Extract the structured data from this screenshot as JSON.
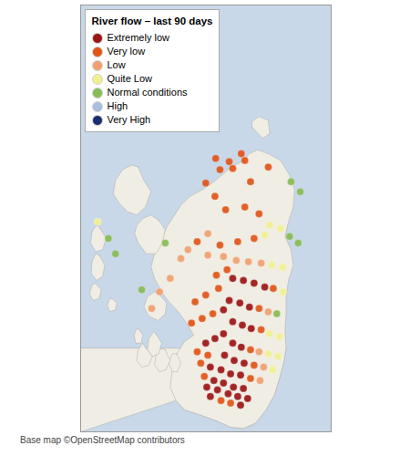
{
  "chart_data": {
    "type": "scatter",
    "title": "River flow – last 90 days",
    "caption": "Base map ©OpenStreetMap contributors",
    "xlim": [
      -7.8,
      -0.75
    ],
    "ylim": [
      54.55,
      60.95
    ],
    "tick_labels": false,
    "legend": "upper left",
    "background": {
      "color": "#c8d8e8"
    },
    "land": {
      "color": "#f0ede4",
      "edge_color": "#aaaaaa",
      "polygons": [
        [
          [
            -2.02,
            55.8
          ],
          [
            -2.08,
            55.6
          ],
          [
            -2.18,
            55.4
          ],
          [
            -2.35,
            55.1
          ],
          [
            -2.58,
            54.88
          ],
          [
            -2.88,
            54.68
          ],
          [
            -3.22,
            54.6
          ],
          [
            -3.58,
            54.62
          ],
          [
            -4.0,
            54.72
          ],
          [
            -4.42,
            54.8
          ],
          [
            -4.88,
            54.88
          ],
          [
            -5.12,
            55.02
          ],
          [
            -7.8,
            54.55
          ],
          [
            -7.8,
            55.8
          ]
        ],
        [
          [
            -2.02,
            55.8
          ],
          [
            -2.08,
            55.6
          ],
          [
            -2.18,
            55.4
          ],
          [
            -2.35,
            55.1
          ],
          [
            -2.58,
            54.88
          ],
          [
            -2.88,
            54.68
          ],
          [
            -3.22,
            54.6
          ],
          [
            -3.58,
            54.62
          ],
          [
            -4.0,
            54.72
          ],
          [
            -4.42,
            54.8
          ],
          [
            -4.88,
            54.88
          ],
          [
            -5.12,
            55.02
          ],
          [
            -5.28,
            55.22
          ],
          [
            -5.22,
            55.48
          ],
          [
            -5.1,
            55.72
          ],
          [
            -4.88,
            55.9
          ],
          [
            -4.62,
            56.0
          ],
          [
            -4.82,
            56.18
          ],
          [
            -5.05,
            56.35
          ],
          [
            -5.32,
            56.5
          ],
          [
            -5.52,
            56.65
          ],
          [
            -5.72,
            56.85
          ],
          [
            -5.82,
            57.02
          ],
          [
            -5.72,
            57.22
          ],
          [
            -5.52,
            57.42
          ],
          [
            -5.38,
            57.62
          ],
          [
            -5.18,
            57.78
          ],
          [
            -4.98,
            57.95
          ],
          [
            -4.72,
            58.08
          ],
          [
            -4.38,
            58.18
          ],
          [
            -4.05,
            58.3
          ],
          [
            -3.65,
            58.48
          ],
          [
            -3.22,
            58.62
          ],
          [
            -3.05,
            58.72
          ],
          [
            -2.82,
            58.78
          ],
          [
            -2.52,
            58.72
          ],
          [
            -2.18,
            58.62
          ],
          [
            -1.92,
            58.4
          ],
          [
            -1.78,
            58.18
          ],
          [
            -1.82,
            57.92
          ],
          [
            -1.95,
            57.7
          ],
          [
            -2.05,
            57.48
          ],
          [
            -1.88,
            57.28
          ],
          [
            -1.82,
            57.05
          ],
          [
            -1.95,
            56.82
          ],
          [
            -2.02,
            56.58
          ],
          [
            -2.02,
            56.32
          ],
          [
            -2.05,
            56.08
          ],
          [
            -2.02,
            55.8
          ]
        ],
        [
          [
            -5.6,
            57.72
          ],
          [
            -5.42,
            57.58
          ],
          [
            -5.5,
            57.38
          ],
          [
            -5.68,
            57.22
          ],
          [
            -5.95,
            57.22
          ],
          [
            -6.18,
            57.38
          ],
          [
            -6.28,
            57.52
          ],
          [
            -6.22,
            57.65
          ],
          [
            -6.05,
            57.75
          ],
          [
            -5.82,
            57.8
          ],
          [
            -5.6,
            57.72
          ]
        ],
        [
          [
            -5.6,
            56.62
          ],
          [
            -5.38,
            56.48
          ],
          [
            -5.42,
            56.32
          ],
          [
            -5.62,
            56.22
          ],
          [
            -5.88,
            56.28
          ],
          [
            -6.02,
            56.42
          ],
          [
            -5.92,
            56.58
          ],
          [
            -5.72,
            56.65
          ],
          [
            -5.6,
            56.62
          ]
        ],
        [
          [
            -5.98,
            55.82
          ],
          [
            -5.78,
            55.68
          ],
          [
            -5.88,
            55.55
          ],
          [
            -6.08,
            55.52
          ],
          [
            -6.22,
            55.62
          ],
          [
            -6.18,
            55.78
          ],
          [
            -6.05,
            55.88
          ],
          [
            -5.98,
            55.82
          ]
        ],
        [
          [
            -6.18,
            58.52
          ],
          [
            -6.02,
            58.32
          ],
          [
            -5.82,
            58.15
          ],
          [
            -5.98,
            57.92
          ],
          [
            -6.22,
            57.8
          ],
          [
            -6.48,
            57.85
          ],
          [
            -6.72,
            57.98
          ],
          [
            -6.88,
            58.12
          ],
          [
            -6.82,
            58.32
          ],
          [
            -6.62,
            58.48
          ],
          [
            -6.35,
            58.55
          ],
          [
            -6.18,
            58.52
          ]
        ],
        [
          [
            -2.98,
            59.12
          ],
          [
            -2.68,
            58.95
          ],
          [
            -2.48,
            59.02
          ],
          [
            -2.52,
            59.22
          ],
          [
            -2.78,
            59.28
          ],
          [
            -2.98,
            59.2
          ],
          [
            -2.98,
            59.12
          ]
        ],
        [
          [
            -5.1,
            55.72
          ],
          [
            -4.98,
            55.58
          ],
          [
            -5.08,
            55.45
          ],
          [
            -5.22,
            55.45
          ],
          [
            -5.32,
            55.58
          ],
          [
            -5.22,
            55.72
          ],
          [
            -5.1,
            55.72
          ]
        ],
        [
          [
            -5.42,
            55.78
          ],
          [
            -5.28,
            55.62
          ],
          [
            -5.4,
            55.48
          ],
          [
            -5.58,
            55.45
          ],
          [
            -5.72,
            55.55
          ],
          [
            -5.68,
            55.7
          ],
          [
            -5.55,
            55.8
          ],
          [
            -5.42,
            55.78
          ]
        ],
        [
          [
            -5.68,
            56.02
          ],
          [
            -5.52,
            55.88
          ],
          [
            -5.6,
            55.72
          ],
          [
            -5.78,
            55.68
          ],
          [
            -5.92,
            55.78
          ],
          [
            -5.88,
            55.95
          ],
          [
            -5.75,
            56.05
          ],
          [
            -5.68,
            56.02
          ]
        ],
        [
          [
            -6.18,
            56.1
          ],
          [
            -6.05,
            56.0
          ],
          [
            -6.1,
            55.88
          ],
          [
            -6.25,
            55.88
          ],
          [
            -6.3,
            56.0
          ],
          [
            -6.22,
            56.1
          ],
          [
            -6.18,
            56.1
          ]
        ],
        [
          [
            -7.25,
            57.6
          ],
          [
            -7.08,
            57.45
          ],
          [
            -7.18,
            57.28
          ],
          [
            -7.38,
            57.25
          ],
          [
            -7.52,
            57.38
          ],
          [
            -7.48,
            57.55
          ],
          [
            -7.35,
            57.65
          ],
          [
            -7.25,
            57.6
          ]
        ],
        [
          [
            -7.28,
            57.2
          ],
          [
            -7.12,
            57.05
          ],
          [
            -7.18,
            56.88
          ],
          [
            -7.35,
            56.82
          ],
          [
            -7.5,
            56.92
          ],
          [
            -7.48,
            57.1
          ],
          [
            -7.38,
            57.22
          ],
          [
            -7.28,
            57.2
          ]
        ],
        [
          [
            -7.38,
            56.78
          ],
          [
            -7.22,
            56.68
          ],
          [
            -7.28,
            56.55
          ],
          [
            -7.45,
            56.52
          ],
          [
            -7.55,
            56.62
          ],
          [
            -7.48,
            56.75
          ],
          [
            -7.38,
            56.78
          ]
        ],
        [
          [
            -6.92,
            56.55
          ],
          [
            -6.78,
            56.48
          ],
          [
            -6.82,
            56.38
          ],
          [
            -6.98,
            56.35
          ],
          [
            -7.05,
            56.45
          ],
          [
            -6.98,
            56.55
          ],
          [
            -6.92,
            56.55
          ]
        ]
      ]
    },
    "series": [
      {
        "name": "Extremely low",
        "color": "#9b1515",
        "x": [
          -3.52,
          -3.22,
          -2.92,
          -2.62,
          -3.62,
          -3.32,
          -3.05,
          -3.78,
          -3.52,
          -3.25,
          -3.0,
          -3.78,
          -4.02,
          -4.28,
          -3.52,
          -3.28,
          -3.75,
          -3.48,
          -3.2,
          -4.15,
          -3.85,
          -3.58,
          -3.3,
          -4.05,
          -3.78,
          -3.5,
          -3.22,
          -4.25,
          -3.95,
          -3.65,
          -3.38,
          -3.1,
          -4.15,
          -3.3
        ],
        "y": [
          56.85,
          56.82,
          56.78,
          56.72,
          56.52,
          56.48,
          56.42,
          56.38,
          56.2,
          56.15,
          56.1,
          56.02,
          55.95,
          55.88,
          55.88,
          55.82,
          55.7,
          55.62,
          55.58,
          55.52,
          55.48,
          55.42,
          55.4,
          55.32,
          55.28,
          55.22,
          55.2,
          55.22,
          55.18,
          55.12,
          55.08,
          55.05,
          55.08,
          54.95
        ]
      },
      {
        "name": "Very low",
        "color": "#e05518",
        "x": [
          -3.18,
          -3.52,
          -3.88,
          -4.28,
          -2.52,
          -3.02,
          -4.02,
          -3.72,
          -3.18,
          -2.78,
          -2.92,
          -3.38,
          -3.88,
          -4.52,
          -3.68,
          -3.98,
          -2.38,
          -3.92,
          -4.28,
          -4.58,
          -2.78,
          -4.08,
          -4.38,
          -4.68,
          -2.72,
          -3.02,
          -4.52,
          -4.22,
          -2.92,
          -4.42,
          -3.02,
          -4.32,
          -3.85,
          -3.58,
          -4.0,
          -3.62,
          -3.28
        ],
        "y": [
          58.62,
          58.5,
          58.48,
          58.28,
          58.52,
          58.3,
          58.08,
          57.88,
          57.92,
          57.82,
          57.45,
          57.4,
          57.35,
          57.4,
          56.98,
          56.9,
          56.7,
          56.7,
          56.6,
          56.5,
          56.4,
          56.32,
          56.25,
          56.18,
          56.08,
          55.78,
          55.75,
          55.7,
          55.55,
          55.58,
          55.35,
          55.38,
          55.02,
          54.98,
          58.65,
          58.6,
          58.72
        ]
      },
      {
        "name": "Low",
        "color": "#f0a070",
        "x": [
          -4.22,
          -4.78,
          -4.22,
          -3.78,
          -3.42,
          -3.08,
          -2.72,
          -2.52,
          -2.78,
          -2.65,
          -2.75,
          -4.98,
          -5.28,
          -5.58,
          -5.8
        ],
        "y": [
          57.52,
          57.28,
          57.2,
          57.18,
          57.12,
          57.1,
          57.08,
          56.35,
          55.75,
          55.52,
          55.32,
          57.15,
          56.85,
          56.65,
          56.4
        ]
      },
      {
        "name": "Quite Low",
        "color": "#f0f090",
        "x": [
          -2.48,
          -2.18,
          -2.62,
          -2.42,
          -2.12,
          -2.1,
          -2.48,
          -2.2,
          -2.52,
          -2.25,
          -2.4,
          -7.32
        ],
        "y": [
          57.65,
          57.6,
          57.5,
          57.05,
          57.02,
          56.65,
          56.02,
          55.98,
          55.72,
          55.68,
          55.48,
          57.7
        ]
      },
      {
        "name": "Normal conditions",
        "color": "#88bb55",
        "x": [
          -1.92,
          -1.68,
          -2.28,
          -5.42,
          -6.08,
          -7.02,
          -6.82,
          -1.88,
          -1.62
        ],
        "y": [
          57.48,
          57.38,
          56.32,
          57.38,
          56.68,
          57.45,
          57.22,
          58.3,
          58.15
        ]
      },
      {
        "name": "High",
        "color": "#aabedd",
        "x": [],
        "y": []
      },
      {
        "name": "Very High",
        "color": "#1a2e6e",
        "x": [],
        "y": []
      }
    ]
  }
}
